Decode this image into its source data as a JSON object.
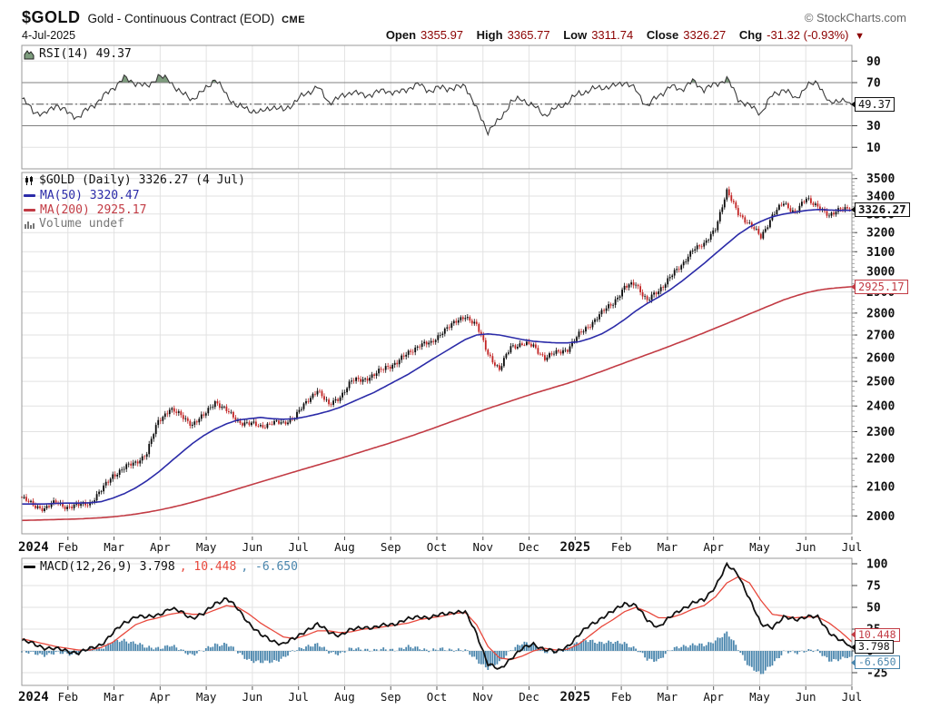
{
  "header": {
    "symbol": "$GOLD",
    "description": "Gold - Continuous Contract (EOD)",
    "exchange": "CME",
    "credit": "© StockCharts.com",
    "date": "4-Jul-2025",
    "quote": {
      "open_label": "Open",
      "open": "3355.97",
      "high_label": "High",
      "high": "3365.77",
      "low_label": "Low",
      "low": "3311.74",
      "close_label": "Close",
      "close": "3326.27",
      "chg_label": "Chg",
      "chg": "-31.32 (-0.93%)",
      "arrow": "▼"
    }
  },
  "colors": {
    "up": "#0a0a0a",
    "down": "#c22424",
    "ma50": "#2b2ba8",
    "ma200": "#c23b44",
    "rsi_line": "#3a3a3a",
    "rsi_fill": "#7d9c7d",
    "macd_line": "#111111",
    "signal_line": "#e8483c",
    "histogram": "#4a86ad",
    "quote_value": "#8b0000",
    "grid": "#e2e2e2",
    "panel_border": "#999999"
  },
  "rsi_panel": {
    "legend": "RSI(14) 49.37",
    "callout": "49.37",
    "yticks": [
      90,
      70,
      30,
      10
    ],
    "overbought": 70,
    "midline": 50,
    "oversold": 30
  },
  "main_panel": {
    "legend_price": "$GOLD (Daily) 3326.27 (4 Jul)",
    "legend_ma50": "MA(50) 3320.47",
    "legend_ma200": "MA(200) 2925.17",
    "legend_volume": "Volume undef",
    "callout_price": "3326.27",
    "callout_ma200": "2925.17",
    "yticks": [
      3500,
      3400,
      3300,
      3200,
      3100,
      3000,
      2900,
      2800,
      2700,
      2600,
      2500,
      2400,
      2300,
      2200,
      2100,
      2000
    ]
  },
  "macd_panel": {
    "legend_name": "MACD(12,26,9) 3.798",
    "legend_signal": ", 10.448",
    "legend_hist": ", -6.650",
    "callout_macd": "3.798",
    "callout_signal": "10.448",
    "callout_hist": "-6.650",
    "yticks": [
      100,
      75,
      50,
      25,
      0,
      -25
    ]
  },
  "x_axis": {
    "labels": [
      "2024",
      "Feb",
      "Mar",
      "Apr",
      "May",
      "Jun",
      "Jul",
      "Aug",
      "Sep",
      "Oct",
      "Nov",
      "Dec",
      "2025",
      "Feb",
      "Mar",
      "Apr",
      "May",
      "Jun",
      "Jul"
    ],
    "year_indices": [
      0,
      12
    ]
  },
  "chart_data": [
    {
      "type": "line",
      "title": "RSI(14)",
      "x_unit": "weekly, Jan-2024 to 4-Jul-2025",
      "ylim": [
        0,
        100
      ],
      "levels": {
        "overbought": 70,
        "midline": 50,
        "oversold": 30
      },
      "values": [
        55,
        44,
        40,
        50,
        42,
        38,
        47,
        55,
        65,
        74,
        70,
        66,
        76,
        72,
        60,
        55,
        62,
        74,
        58,
        48,
        45,
        42,
        48,
        44,
        52,
        60,
        66,
        52,
        56,
        62,
        58,
        60,
        63,
        60,
        65,
        68,
        62,
        66,
        64,
        68,
        45,
        25,
        35,
        52,
        55,
        48,
        40,
        46,
        52,
        60,
        63,
        66,
        66,
        71,
        63,
        48,
        58,
        66,
        64,
        71,
        64,
        68,
        74,
        55,
        48,
        42,
        58,
        64,
        55,
        66,
        71,
        50,
        55,
        49.37
      ],
      "last": 49.37
    },
    {
      "type": "candlestick",
      "title": "$GOLD Daily close with MA(50) and MA(200)",
      "x_unit": "weekly, Jan-2024 to 4-Jul-2025",
      "scale": "log",
      "ylim": [
        1960,
        3540
      ],
      "series": [
        {
          "name": "$GOLD close",
          "values": [
            2060,
            2035,
            2025,
            2045,
            2030,
            2035,
            2045,
            2085,
            2140,
            2165,
            2185,
            2220,
            2340,
            2390,
            2360,
            2330,
            2360,
            2420,
            2380,
            2340,
            2330,
            2320,
            2335,
            2330,
            2360,
            2410,
            2470,
            2400,
            2440,
            2500,
            2510,
            2525,
            2560,
            2580,
            2620,
            2660,
            2660,
            2720,
            2750,
            2790,
            2740,
            2620,
            2545,
            2650,
            2660,
            2650,
            2600,
            2620,
            2640,
            2700,
            2750,
            2800,
            2850,
            2920,
            2940,
            2860,
            2900,
            2980,
            3020,
            3120,
            3130,
            3230,
            3420,
            3310,
            3240,
            3180,
            3290,
            3360,
            3310,
            3380,
            3350,
            3280,
            3340,
            3326.27
          ]
        },
        {
          "name": "MA(50)",
          "values": [
            2040,
            2040,
            2040,
            2042,
            2043,
            2043,
            2044,
            2048,
            2060,
            2075,
            2095,
            2120,
            2150,
            2185,
            2220,
            2255,
            2285,
            2310,
            2330,
            2345,
            2350,
            2355,
            2350,
            2348,
            2350,
            2358,
            2368,
            2380,
            2395,
            2415,
            2435,
            2455,
            2480,
            2505,
            2530,
            2560,
            2590,
            2620,
            2650,
            2680,
            2700,
            2705,
            2700,
            2690,
            2680,
            2672,
            2668,
            2665,
            2665,
            2670,
            2685,
            2705,
            2735,
            2770,
            2810,
            2845,
            2875,
            2910,
            2950,
            2995,
            3040,
            3090,
            3140,
            3190,
            3230,
            3260,
            3285,
            3300,
            3310,
            3320,
            3325,
            3322,
            3320,
            3320.47
          ]
        },
        {
          "name": "MA(200)",
          "values": [
            1985,
            1986,
            1987,
            1988,
            1989,
            1990,
            1992,
            1994,
            1997,
            2001,
            2006,
            2012,
            2019,
            2027,
            2036,
            2046,
            2057,
            2068,
            2080,
            2092,
            2104,
            2116,
            2128,
            2140,
            2152,
            2164,
            2176,
            2188,
            2200,
            2213,
            2226,
            2239,
            2252,
            2266,
            2280,
            2295,
            2310,
            2326,
            2342,
            2358,
            2374,
            2390,
            2405,
            2420,
            2435,
            2450,
            2464,
            2478,
            2492,
            2508,
            2525,
            2542,
            2560,
            2578,
            2596,
            2614,
            2632,
            2651,
            2670,
            2690,
            2710,
            2731,
            2752,
            2774,
            2796,
            2818,
            2840,
            2862,
            2880,
            2896,
            2908,
            2916,
            2921,
            2925.17
          ]
        }
      ],
      "last_quote": {
        "open": 3355.97,
        "high": 3365.77,
        "low": 3311.74,
        "close": 3326.27,
        "chg": -31.32,
        "chg_pct": -0.93
      }
    },
    {
      "type": "line+bar",
      "title": "MACD(12,26,9)",
      "x_unit": "weekly, Jan-2024 to 4-Jul-2025",
      "ylim": [
        -35,
        105
      ],
      "series": [
        {
          "name": "MACD",
          "values": [
            12,
            8,
            4,
            2,
            0,
            -2,
            2,
            8,
            20,
            32,
            40,
            38,
            42,
            48,
            45,
            38,
            42,
            55,
            60,
            48,
            32,
            18,
            12,
            8,
            14,
            24,
            30,
            22,
            18,
            24,
            28,
            26,
            30,
            32,
            36,
            40,
            38,
            42,
            45,
            44,
            20,
            -15,
            -22,
            -8,
            2,
            8,
            2,
            -2,
            6,
            18,
            30,
            38,
            45,
            55,
            52,
            35,
            28,
            38,
            48,
            55,
            58,
            75,
            98,
            88,
            60,
            30,
            28,
            38,
            36,
            40,
            38,
            22,
            12,
            3.798
          ]
        },
        {
          "name": "Signal",
          "values": [
            14,
            11,
            8,
            5,
            3,
            1,
            1,
            4,
            10,
            20,
            30,
            35,
            38,
            42,
            44,
            42,
            42,
            47,
            52,
            50,
            42,
            32,
            24,
            16,
            14,
            18,
            23,
            23,
            21,
            22,
            25,
            26,
            28,
            30,
            32,
            36,
            38,
            40,
            43,
            44,
            30,
            5,
            -8,
            -10,
            -6,
            0,
            3,
            1,
            2,
            8,
            18,
            28,
            36,
            45,
            50,
            45,
            38,
            38,
            42,
            48,
            52,
            62,
            78,
            85,
            78,
            58,
            42,
            40,
            38,
            39,
            39,
            32,
            22,
            10.448
          ]
        },
        {
          "name": "Histogram",
          "derive": "MACD - Signal",
          "last": -6.65
        }
      ],
      "last": {
        "macd": 3.798,
        "signal": 10.448,
        "hist": -6.65
      }
    }
  ]
}
